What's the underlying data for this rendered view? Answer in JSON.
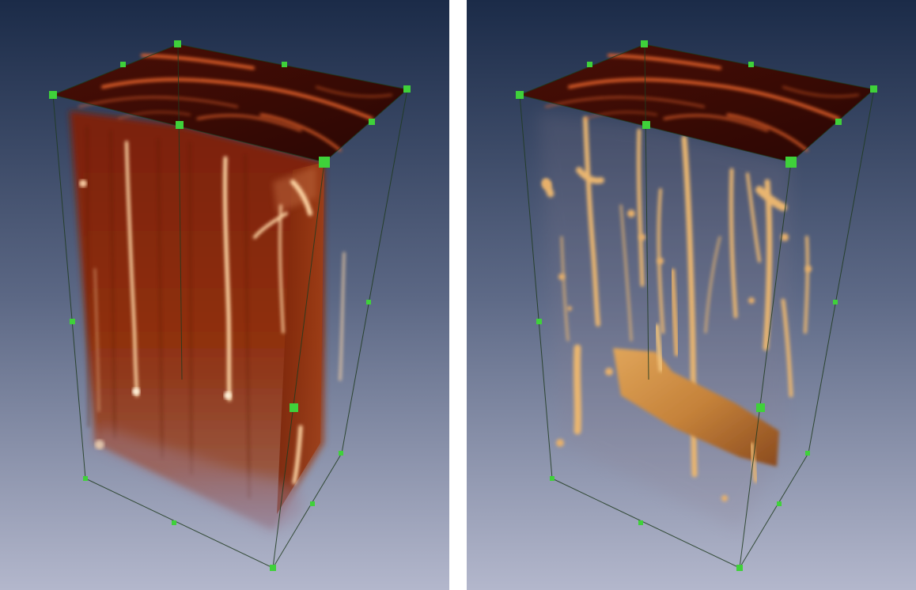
{
  "figure": {
    "panels": [
      {
        "id": "left",
        "rendering": "dense-volume",
        "background": {
          "top": "#1b2b48",
          "bottom": "#b3b7cc"
        },
        "volume_color": "#8a2a0c",
        "highlight_color": "#ffd9a8"
      },
      {
        "id": "right",
        "rendering": "thresholded-volume",
        "background": {
          "top": "#1b2b48",
          "bottom": "#b3b7cc"
        },
        "volume_color": "#c98a3a",
        "highlight_color": "#fff0d0"
      }
    ],
    "handle_color": "#3fd13a",
    "top_slice_color": "#3a0a04",
    "top_slice_streak_color": "#e8642a",
    "divider_color": "#ffffff"
  }
}
